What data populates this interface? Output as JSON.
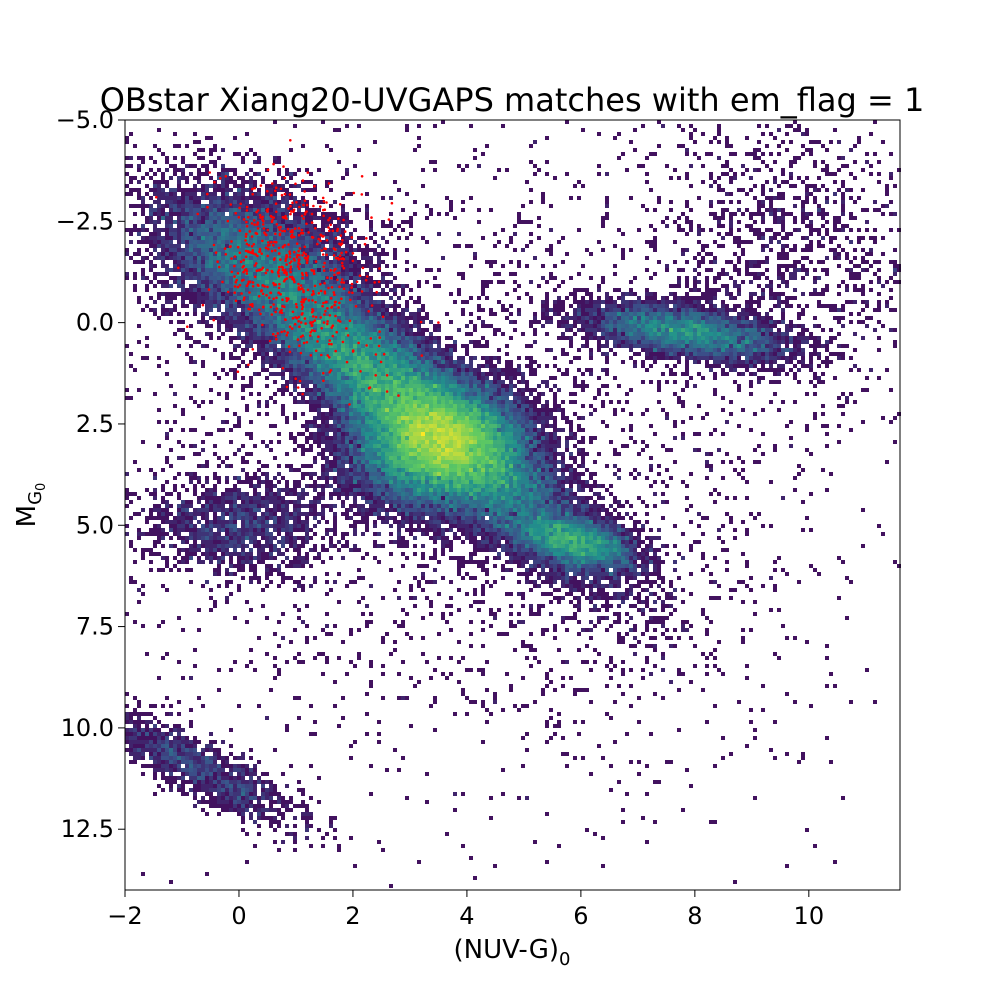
{
  "chart_data": {
    "type": "scatter",
    "title": "OBstar Xiang20-UVGAPS matches with em_flag = 1",
    "xlabel": {
      "main": "(NUV-G)",
      "sub": "0"
    },
    "ylabel": {
      "main": "M",
      "sub": "G",
      "subsub": "0"
    },
    "xlim": [
      -2.0,
      11.6
    ],
    "ylim": [
      14.0,
      -5.0
    ],
    "y_inverted": true,
    "grid": false,
    "x_ticks": [
      {
        "value": -2,
        "label": "−2"
      },
      {
        "value": 0,
        "label": "0"
      },
      {
        "value": 2,
        "label": "2"
      },
      {
        "value": 4,
        "label": "4"
      },
      {
        "value": 6,
        "label": "6"
      },
      {
        "value": 8,
        "label": "8"
      },
      {
        "value": 10,
        "label": "10"
      }
    ],
    "y_ticks": [
      {
        "value": -5.0,
        "label": "−5.0"
      },
      {
        "value": -2.5,
        "label": "−2.5"
      },
      {
        "value": 0.0,
        "label": "0.0"
      },
      {
        "value": 2.5,
        "label": "2.5"
      },
      {
        "value": 5.0,
        "label": "5.0"
      },
      {
        "value": 7.5,
        "label": "7.5"
      },
      {
        "value": 10.0,
        "label": "10.0"
      },
      {
        "value": 12.5,
        "label": "12.5"
      }
    ],
    "series": [
      {
        "kind": "density",
        "colormap": "viridis",
        "color_low": "#440154",
        "color_high": "#fde725",
        "components": [
          {
            "x": 3.5,
            "y": 3.0,
            "sx": 0.75,
            "sy": 0.75,
            "rho": 0.0,
            "weight": 0.28
          },
          {
            "x": 2.9,
            "y": 1.9,
            "sx": 1.55,
            "sy": 1.9,
            "rho": 0.9,
            "weight": 0.42
          },
          {
            "x": 5.9,
            "y": 5.4,
            "sx": 0.55,
            "sy": 0.35,
            "rho": 0.5,
            "weight": 0.05
          },
          {
            "x": 7.8,
            "y": 0.2,
            "sx": 0.9,
            "sy": 0.35,
            "rho": 0.5,
            "weight": 0.06
          },
          {
            "x": 0.3,
            "y": -1.6,
            "sx": 0.9,
            "sy": 0.9,
            "rho": 0.3,
            "weight": 0.08
          },
          {
            "x": -0.7,
            "y": 11.0,
            "sx": 0.9,
            "sy": 0.75,
            "rho": 0.85,
            "weight": 0.02
          },
          {
            "x": 3.5,
            "y": 3.0,
            "sx": 3.3,
            "sy": 4.0,
            "rho": 0.2,
            "weight": 0.05
          },
          {
            "x": 0.0,
            "y": 5.0,
            "sx": 0.8,
            "sy": 0.6,
            "rho": 0.0,
            "weight": 0.02
          },
          {
            "x": 9.5,
            "y": -1.5,
            "sx": 1.4,
            "sy": 2.0,
            "rho": 0.0,
            "weight": 0.02
          }
        ]
      },
      {
        "kind": "points",
        "color": "#ff0000",
        "center": {
          "x": 1.0,
          "y": -1.2
        },
        "spread": {
          "sx": 0.7,
          "sy": 1.1,
          "rho": 0.3
        },
        "count": 620,
        "extra": [
          [
            2.3,
            1.6
          ],
          [
            2.6,
            1.3
          ],
          [
            2.6,
            1.7
          ],
          [
            2.8,
            1.8
          ],
          [
            2.4,
            1.3
          ],
          [
            3.5,
            0.0
          ],
          [
            2.1,
            0.5
          ],
          [
            0.9,
            -4.5
          ],
          [
            1.3,
            -2.1
          ]
        ]
      }
    ]
  }
}
